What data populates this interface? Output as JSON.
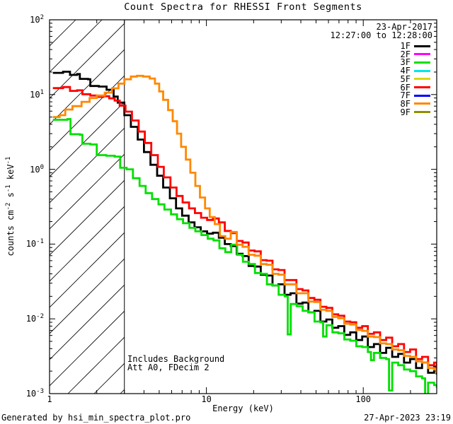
{
  "title": "Count Spectra for RHESSI Front Segments",
  "header": {
    "date": "23-Apr-2017",
    "time_range": "12:27:00 to 12:28:00"
  },
  "annotations": {
    "background": "Includes Background",
    "attenuator": "Att A0, FDecim 2"
  },
  "footer": {
    "generator": "Generated by hsi_min_spectra_plot.pro",
    "timestamp": "27-Apr-2023 23:19"
  },
  "axes": {
    "x_label": "Energy (keV)",
    "y_label": "counts cm^{-2} s^{-1} keV^{-1}"
  },
  "chart_data": {
    "type": "line",
    "subtype": "step-histogram",
    "x_scale": "log",
    "y_scale": "log",
    "x_range": [
      1,
      294
    ],
    "y_range": [
      0.001,
      100
    ],
    "x_ticks": [
      1,
      10,
      100
    ],
    "y_tick_exponents": [
      2,
      1,
      0,
      -1,
      -2,
      -3
    ],
    "grid": false,
    "legend_position": "top-right-inside",
    "hatch_region": {
      "x_min": 1,
      "x_max": 3.0,
      "note": "diagonal-hatched excluded low-energy band"
    },
    "frame_color": "#000000",
    "legend": [
      {
        "label": "1F",
        "color": "#000000"
      },
      {
        "label": "2F",
        "color": "#ff00ff"
      },
      {
        "label": "3F",
        "color": "#00e000"
      },
      {
        "label": "4F",
        "color": "#00e8e8"
      },
      {
        "label": "5F",
        "color": "#d8d800"
      },
      {
        "label": "6F",
        "color": "#ff0000"
      },
      {
        "label": "7F",
        "color": "#0000ff"
      },
      {
        "label": "8F",
        "color": "#ff8800"
      },
      {
        "label": "9F",
        "color": "#8f8f00"
      }
    ],
    "series": [
      {
        "name": "1F",
        "color": "#000000",
        "points": [
          [
            1.05,
            19.5
          ],
          [
            1.22,
            20.2
          ],
          [
            1.35,
            18.3
          ],
          [
            1.5,
            18.8
          ],
          [
            1.56,
            16.2
          ],
          [
            1.76,
            16.0
          ],
          [
            1.82,
            13.0
          ],
          [
            2.06,
            12.8
          ],
          [
            2.31,
            11.6
          ],
          [
            2.56,
            9.4
          ],
          [
            2.72,
            7.8
          ],
          [
            3.0,
            5.3
          ],
          [
            3.3,
            3.7
          ],
          [
            3.65,
            2.5
          ],
          [
            4.0,
            1.7
          ],
          [
            4.4,
            1.15
          ],
          [
            4.85,
            0.82
          ],
          [
            5.3,
            0.57
          ],
          [
            5.85,
            0.41
          ],
          [
            6.4,
            0.3
          ],
          [
            7.0,
            0.24
          ],
          [
            7.7,
            0.195
          ],
          [
            8.4,
            0.168
          ],
          [
            9.2,
            0.148
          ],
          [
            10.1,
            0.138
          ],
          [
            11.0,
            0.142
          ],
          [
            12.0,
            0.122
          ],
          [
            13.1,
            0.1
          ],
          [
            14.3,
            0.094
          ],
          [
            15.6,
            0.074
          ],
          [
            17.0,
            0.069
          ],
          [
            18.6,
            0.051
          ],
          [
            20.3,
            0.05
          ],
          [
            22.2,
            0.039
          ],
          [
            24.2,
            0.038
          ],
          [
            26.4,
            0.028
          ],
          [
            28.8,
            0.029
          ],
          [
            31.5,
            0.021
          ],
          [
            34.4,
            0.022
          ],
          [
            37.5,
            0.016
          ],
          [
            41.0,
            0.0165
          ],
          [
            44.7,
            0.0122
          ],
          [
            48.8,
            0.0128
          ],
          [
            53.3,
            0.0092
          ],
          [
            58.2,
            0.0098
          ],
          [
            63.5,
            0.0076
          ],
          [
            69.3,
            0.008
          ],
          [
            75.7,
            0.0061
          ],
          [
            82.6,
            0.0066
          ],
          [
            90.2,
            0.0052
          ],
          [
            98.4,
            0.0058
          ],
          [
            107,
            0.0042
          ],
          [
            117,
            0.0046
          ],
          [
            128,
            0.0035
          ],
          [
            140,
            0.0041
          ],
          [
            153,
            0.0031
          ],
          [
            167,
            0.0034
          ],
          [
            182,
            0.0026
          ],
          [
            199,
            0.0029
          ],
          [
            217,
            0.0022
          ],
          [
            237,
            0.0026
          ],
          [
            259,
            0.0019
          ],
          [
            283,
            0.0023
          ],
          [
            294,
            0.0018
          ]
        ]
      },
      {
        "name": "3F",
        "color": "#00e000",
        "points": [
          [
            1.05,
            4.6
          ],
          [
            1.3,
            4.7
          ],
          [
            1.36,
            2.95
          ],
          [
            1.56,
            2.9
          ],
          [
            1.62,
            2.2
          ],
          [
            1.82,
            2.15
          ],
          [
            2.0,
            1.55
          ],
          [
            2.3,
            1.52
          ],
          [
            2.6,
            1.48
          ],
          [
            2.82,
            1.05
          ],
          [
            3.1,
            1.0
          ],
          [
            3.4,
            0.76
          ],
          [
            3.75,
            0.6
          ],
          [
            4.1,
            0.48
          ],
          [
            4.5,
            0.4
          ],
          [
            4.95,
            0.34
          ],
          [
            5.4,
            0.29
          ],
          [
            5.95,
            0.25
          ],
          [
            6.5,
            0.215
          ],
          [
            7.1,
            0.19
          ],
          [
            7.8,
            0.165
          ],
          [
            8.5,
            0.148
          ],
          [
            9.3,
            0.132
          ],
          [
            10.2,
            0.118
          ],
          [
            11.1,
            0.112
          ],
          [
            12.1,
            0.088
          ],
          [
            13.2,
            0.078
          ],
          [
            14.4,
            0.098
          ],
          [
            15.7,
            0.072
          ],
          [
            17.1,
            0.058
          ],
          [
            18.7,
            0.054
          ],
          [
            20.4,
            0.041
          ],
          [
            22.3,
            0.04
          ],
          [
            24.3,
            0.029
          ],
          [
            26.5,
            0.028
          ],
          [
            28.9,
            0.021
          ],
          [
            31.6,
            0.02
          ],
          [
            33.0,
            0.0062
          ],
          [
            34.5,
            0.0158
          ],
          [
            37.6,
            0.0148
          ],
          [
            41.1,
            0.0128
          ],
          [
            44.8,
            0.0122
          ],
          [
            48.9,
            0.0092
          ],
          [
            53.4,
            0.009
          ],
          [
            55.5,
            0.0058
          ],
          [
            58.3,
            0.0082
          ],
          [
            63.6,
            0.0066
          ],
          [
            69.4,
            0.0064
          ],
          [
            75.8,
            0.0053
          ],
          [
            82.7,
            0.0051
          ],
          [
            90.3,
            0.0043
          ],
          [
            98.5,
            0.0042
          ],
          [
            107,
            0.0036
          ],
          [
            112,
            0.0028
          ],
          [
            117,
            0.0035
          ],
          [
            128,
            0.003
          ],
          [
            140,
            0.0029
          ],
          [
            146,
            0.0011
          ],
          [
            153,
            0.0026
          ],
          [
            167,
            0.0024
          ],
          [
            182,
            0.0021
          ],
          [
            199,
            0.002
          ],
          [
            217,
            0.0017
          ],
          [
            237,
            0.0016
          ],
          [
            248,
            0.0007
          ],
          [
            259,
            0.0014
          ],
          [
            283,
            0.0013
          ],
          [
            294,
            0.0012
          ]
        ]
      },
      {
        "name": "6F",
        "color": "#ff0000",
        "points": [
          [
            1.05,
            12.2
          ],
          [
            1.22,
            12.6
          ],
          [
            1.35,
            11.2
          ],
          [
            1.5,
            11.4
          ],
          [
            1.62,
            10.1
          ],
          [
            1.82,
            9.7
          ],
          [
            2.0,
            9.3
          ],
          [
            2.2,
            9.5
          ],
          [
            2.4,
            8.9
          ],
          [
            2.6,
            8.3
          ],
          [
            2.8,
            7.1
          ],
          [
            3.05,
            5.9
          ],
          [
            3.35,
            4.5
          ],
          [
            3.7,
            3.2
          ],
          [
            4.05,
            2.25
          ],
          [
            4.45,
            1.55
          ],
          [
            4.9,
            1.08
          ],
          [
            5.35,
            0.78
          ],
          [
            5.9,
            0.57
          ],
          [
            6.45,
            0.44
          ],
          [
            7.05,
            0.36
          ],
          [
            7.75,
            0.3
          ],
          [
            8.45,
            0.26
          ],
          [
            9.25,
            0.225
          ],
          [
            10.1,
            0.21
          ],
          [
            11.0,
            0.22
          ],
          [
            12.0,
            0.195
          ],
          [
            13.1,
            0.15
          ],
          [
            14.3,
            0.14
          ],
          [
            15.6,
            0.11
          ],
          [
            17.0,
            0.105
          ],
          [
            18.6,
            0.082
          ],
          [
            20.3,
            0.08
          ],
          [
            22.2,
            0.061
          ],
          [
            24.2,
            0.06
          ],
          [
            26.4,
            0.046
          ],
          [
            28.8,
            0.045
          ],
          [
            31.5,
            0.033
          ],
          [
            34.4,
            0.033
          ],
          [
            37.5,
            0.025
          ],
          [
            41.0,
            0.024
          ],
          [
            44.7,
            0.019
          ],
          [
            48.8,
            0.018
          ],
          [
            53.3,
            0.0145
          ],
          [
            58.2,
            0.014
          ],
          [
            63.5,
            0.0115
          ],
          [
            69.3,
            0.011
          ],
          [
            75.7,
            0.0092
          ],
          [
            82.6,
            0.009
          ],
          [
            90.2,
            0.0076
          ],
          [
            98.4,
            0.008
          ],
          [
            107,
            0.0063
          ],
          [
            117,
            0.0066
          ],
          [
            128,
            0.0052
          ],
          [
            140,
            0.0056
          ],
          [
            153,
            0.0043
          ],
          [
            167,
            0.0046
          ],
          [
            182,
            0.0036
          ],
          [
            199,
            0.0039
          ],
          [
            217,
            0.0029
          ],
          [
            237,
            0.0031
          ],
          [
            259,
            0.0024
          ],
          [
            283,
            0.0026
          ],
          [
            294,
            0.0021
          ]
        ]
      },
      {
        "name": "8F",
        "color": "#ff8800",
        "points": [
          [
            1.05,
            5.0
          ],
          [
            1.16,
            5.3
          ],
          [
            1.26,
            6.3
          ],
          [
            1.4,
            7.0
          ],
          [
            1.6,
            8.0
          ],
          [
            1.8,
            9.0
          ],
          [
            2.0,
            9.7
          ],
          [
            2.25,
            10.6
          ],
          [
            2.5,
            12.1
          ],
          [
            2.75,
            14.0
          ],
          [
            3.0,
            16.0
          ],
          [
            3.3,
            17.4
          ],
          [
            3.6,
            17.8
          ],
          [
            3.95,
            17.4
          ],
          [
            4.35,
            16.4
          ],
          [
            4.7,
            14.0
          ],
          [
            5.0,
            11.0
          ],
          [
            5.3,
            8.5
          ],
          [
            5.7,
            6.2
          ],
          [
            6.1,
            4.4
          ],
          [
            6.5,
            3.0
          ],
          [
            6.9,
            2.0
          ],
          [
            7.4,
            1.35
          ],
          [
            7.9,
            0.9
          ],
          [
            8.5,
            0.6
          ],
          [
            9.1,
            0.42
          ],
          [
            9.8,
            0.3
          ],
          [
            10.5,
            0.23
          ],
          [
            11.3,
            0.185
          ],
          [
            12.2,
            0.128
          ],
          [
            13.2,
            0.118
          ],
          [
            14.3,
            0.145
          ],
          [
            15.6,
            0.098
          ],
          [
            17.0,
            0.092
          ],
          [
            18.6,
            0.072
          ],
          [
            20.3,
            0.07
          ],
          [
            22.2,
            0.054
          ],
          [
            24.2,
            0.053
          ],
          [
            26.4,
            0.04
          ],
          [
            28.8,
            0.039
          ],
          [
            31.5,
            0.029
          ],
          [
            34.4,
            0.029
          ],
          [
            37.5,
            0.022
          ],
          [
            41.0,
            0.022
          ],
          [
            44.7,
            0.017
          ],
          [
            48.8,
            0.0168
          ],
          [
            53.3,
            0.0132
          ],
          [
            58.2,
            0.0128
          ],
          [
            63.5,
            0.0106
          ],
          [
            69.3,
            0.0102
          ],
          [
            75.7,
            0.0086
          ],
          [
            82.6,
            0.0084
          ],
          [
            90.2,
            0.0071
          ],
          [
            98.4,
            0.0069
          ],
          [
            107,
            0.0058
          ],
          [
            117,
            0.0057
          ],
          [
            128,
            0.0047
          ],
          [
            140,
            0.0046
          ],
          [
            153,
            0.0039
          ],
          [
            167,
            0.0038
          ],
          [
            182,
            0.0032
          ],
          [
            199,
            0.0031
          ],
          [
            217,
            0.0027
          ],
          [
            237,
            0.0026
          ],
          [
            259,
            0.0022
          ],
          [
            283,
            0.0021
          ],
          [
            294,
            0.0019
          ]
        ]
      }
    ]
  }
}
